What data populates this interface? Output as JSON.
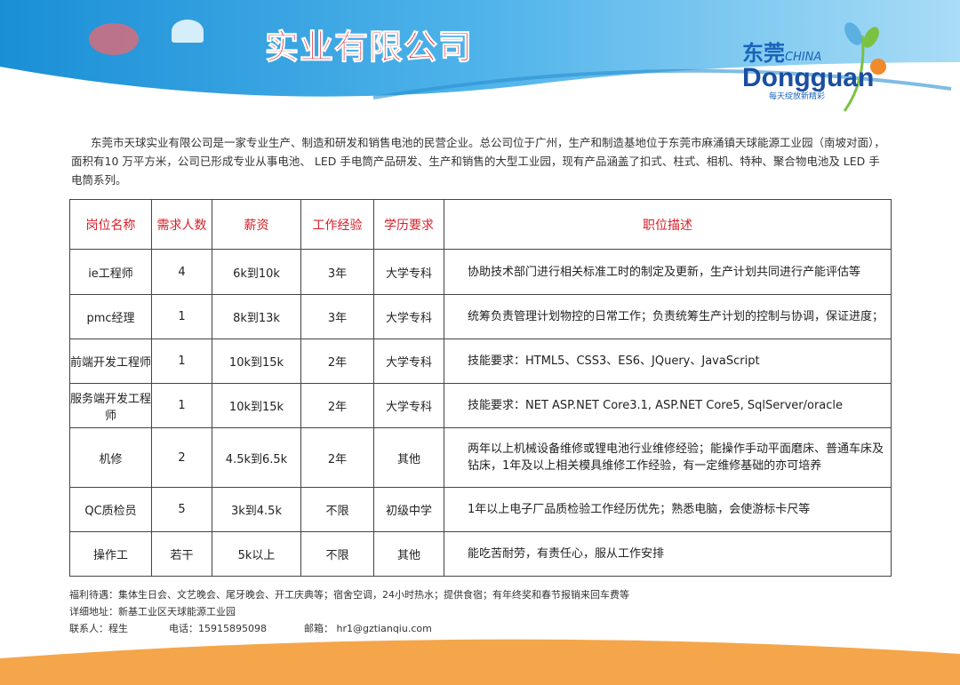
{
  "header": {
    "title": "实业有限公司",
    "logo": {
      "cn": "东莞",
      "china": "CHINA",
      "en": "Dongguan",
      "slogan": "每天绽放新精彩"
    }
  },
  "intro": "东莞市天球实业有限公司是一家专业生产、制造和研发和销售电池的民营企业。总公司位于广州，生产和制造基地位于东莞市麻涌镇天球能源工业园（南坡对面），面积有10 万平方米，公司已形成专业从事电池、 LED 手电筒产品研发、生产和销售的大型工业园，现有产品涵盖了扣式、柱式、相机、特种、聚合物电池及 LED 手电筒系列。",
  "table": {
    "headers": [
      "岗位名称",
      "需求人数",
      "薪资",
      "工作经验",
      "学历要求",
      "职位描述"
    ],
    "rows": [
      [
        "ie工程师",
        "4",
        "6k到10k",
        "3年",
        "大学专科",
        "协助技术部门进行相关标准工时的制定及更新，生产计划共同进行产能评估等"
      ],
      [
        "pmc经理",
        "1",
        "8k到13k",
        "3年",
        "大学专科",
        "统筹负责管理计划物控的日常工作；负责统筹生产计划的控制与协调，保证进度；"
      ],
      [
        "前端开发工程师",
        "1",
        "10k到15k",
        "2年",
        "大学专科",
        "技能要求：HTML5、CSS3、ES6、JQuery、JavaScript"
      ],
      [
        "服务端开发工程师",
        "1",
        "10k到15k",
        "2年",
        "大学专科",
        "技能要求：NET ASP.NET Core3.1, ASP.NET Core5, SqlServer/oracle"
      ],
      [
        "机修",
        "2",
        "4.5k到6.5k",
        "2年",
        "其他",
        "两年以上机械设备维修或锂电池行业维修经验；能操作手动平面磨床、普通车床及钻床，1年及以上相关模具维修工作经验，有一定维修基础的亦可培养"
      ],
      [
        "QC质检员",
        "5",
        "3k到4.5k",
        "不限",
        "初级中学",
        "1年以上电子厂品质检验工作经历优先；熟悉电脑，会使游标卡尺等"
      ],
      [
        "操作工",
        "若干",
        "5k以上",
        "不限",
        "其他",
        "能吃苦耐劳，有责任心，服从工作安排"
      ]
    ]
  },
  "footer": {
    "benefits": "福利待遇：集体生日会、文艺晚会、尾牙晚会、开工庆典等；宿舍空调，24小时热水；提供食宿；有年终奖和春节报销来回车费等",
    "address": "详细地址：新基工业区天球能源工业园",
    "contact": "联系人：程生",
    "phone": "电话：15915895098",
    "email": "邮箱： hr1@gztianqiu.com"
  },
  "colors": {
    "accent": "#d8202a",
    "banner": "#1a8fd6",
    "bottom": "#f5a64a"
  }
}
